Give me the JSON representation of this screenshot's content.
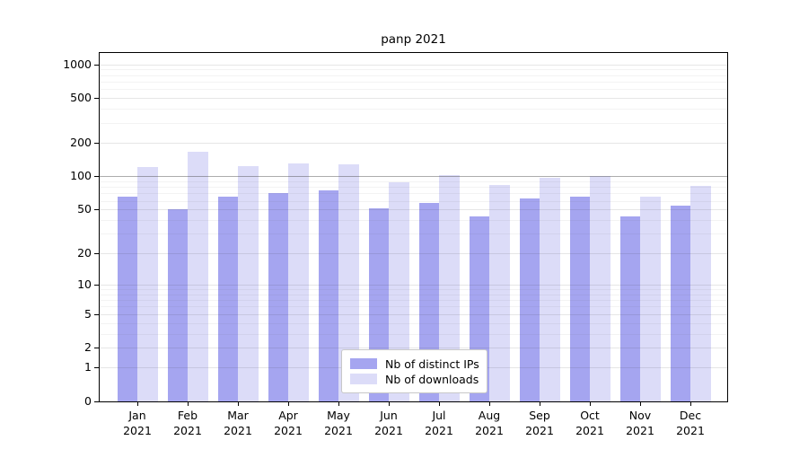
{
  "chart_data": {
    "type": "bar",
    "title": "panp 2021",
    "categories": [
      "Jan",
      "Feb",
      "Mar",
      "Apr",
      "May",
      "Jun",
      "Jul",
      "Aug",
      "Sep",
      "Oct",
      "Nov",
      "Dec"
    ],
    "year_label": "2021",
    "series": [
      {
        "name": "Nb of distinct IPs",
        "color": "#a5a5f0",
        "values": [
          65,
          50,
          65,
          70,
          74,
          51,
          57,
          43,
          63,
          65,
          43,
          54
        ]
      },
      {
        "name": "Nb of downloads",
        "color": "#dcdcf8",
        "values": [
          120,
          167,
          124,
          131,
          127,
          89,
          103,
          84,
          97,
          100,
          65,
          82
        ]
      }
    ],
    "xlabel": "",
    "ylabel": "",
    "y_axis": {
      "scale": "log10(value+1)",
      "ticks": [
        0,
        1,
        2,
        5,
        10,
        20,
        50,
        100,
        200,
        500,
        1000
      ],
      "top_value": 1270,
      "emphasized_gridline": 100
    },
    "grid": "on",
    "legend": {
      "position": "bottom-center",
      "items": [
        "Nb of distinct IPs",
        "Nb of downloads"
      ]
    }
  }
}
